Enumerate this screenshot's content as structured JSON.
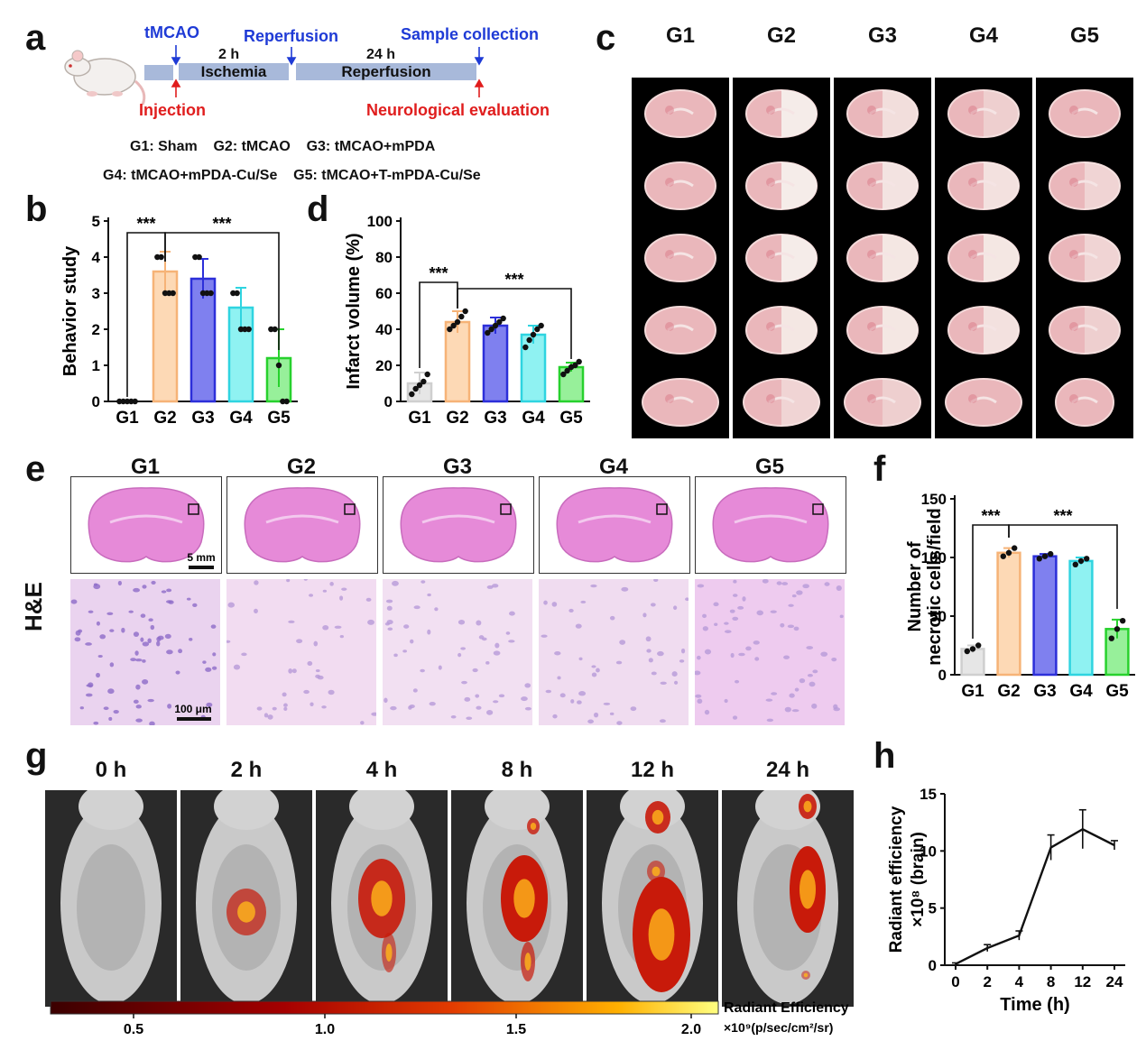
{
  "panel_labels": {
    "a": "a",
    "b": "b",
    "c": "c",
    "d": "d",
    "e": "e",
    "f": "f",
    "g": "g",
    "h": "h"
  },
  "timeline": {
    "events_top": [
      "tMCAO",
      "Reperfusion",
      "Sample collection"
    ],
    "durations": [
      "2 h",
      "24 h"
    ],
    "phases": [
      "Ischemia",
      "Reperfusion"
    ],
    "events_bottom": [
      "Injection",
      "Neurological evaluation"
    ],
    "groups_line1": "G1: Sham    G2: tMCAO    G3: tMCAO+mPDA",
    "groups_line2": "G4: tMCAO+mPDA-Cu/Se    G5: tMCAO+T-mPDA-Cu/Se"
  },
  "groups": [
    "G1",
    "G2",
    "G3",
    "G4",
    "G5"
  ],
  "colors": {
    "G1": "#e6e6e6",
    "G2": "#fdd9b5",
    "G3": "#7f80ef",
    "G4": "#8ff2f2",
    "G5": "#97f09a",
    "G1_edge": "#cfcfcf",
    "G2_edge": "#f6b377",
    "G3_edge": "#2c2fd9",
    "G4_edge": "#2fd4e0",
    "G5_edge": "#27d12d",
    "blue": "#1f3bd6",
    "red": "#e01d1d"
  },
  "he": {
    "row_label": "H&E",
    "scale_top": "5 mm",
    "scale_bottom": "100 μm"
  },
  "imaging": {
    "times": [
      "0 h",
      "2 h",
      "4 h",
      "8 h",
      "12 h",
      "24 h"
    ],
    "colorbar_title": "Radiant Efficiency",
    "colorbar_unit": "×10⁹(p/sec/cm²/sr)",
    "colorbar_ticks": [
      "0.5",
      "1.0",
      "1.5",
      "2.0"
    ]
  },
  "chart_data": [
    {
      "panel": "b",
      "type": "bar",
      "categories": [
        "G1",
        "G2",
        "G3",
        "G4",
        "G5"
      ],
      "values": [
        0,
        3.6,
        3.4,
        2.6,
        1.2
      ],
      "errors": [
        0,
        0.55,
        0.55,
        0.55,
        0.8
      ],
      "points": [
        [
          0,
          0,
          0,
          0,
          0
        ],
        [
          4,
          4,
          3,
          3,
          3
        ],
        [
          4,
          4,
          3,
          3,
          3
        ],
        [
          3,
          3,
          2,
          2,
          2
        ],
        [
          2,
          2,
          1,
          0,
          0
        ]
      ],
      "ylabel": "Behavior study",
      "ylim": [
        0,
        5
      ],
      "yticks": [
        0,
        1,
        2,
        3,
        4,
        5
      ],
      "sig": [
        {
          "from": "G1",
          "to": "G2",
          "label": "***"
        },
        {
          "from": "G2",
          "to": "G5",
          "label": "***"
        }
      ]
    },
    {
      "panel": "d",
      "type": "bar",
      "categories": [
        "G1",
        "G2",
        "G3",
        "G4",
        "G5"
      ],
      "values": [
        10,
        44,
        42,
        37,
        19
      ],
      "errors": [
        6,
        6,
        4.5,
        5,
        2.5
      ],
      "points": [
        [
          4,
          7,
          9,
          11,
          15
        ],
        [
          40,
          42,
          44,
          47,
          50
        ],
        [
          38,
          40,
          42,
          44,
          46
        ],
        [
          30,
          34,
          37,
          40,
          42
        ],
        [
          15,
          17,
          19,
          20,
          22
        ]
      ],
      "ylabel": "Infarct volume (%)",
      "ylim": [
        0,
        100
      ],
      "yticks": [
        0,
        20,
        40,
        60,
        80,
        100
      ],
      "sig": [
        {
          "from": "G1",
          "to": "G2",
          "label": "***"
        },
        {
          "from": "G2",
          "to": "G5",
          "label": "***"
        }
      ]
    },
    {
      "panel": "f",
      "type": "bar",
      "categories": [
        "G1",
        "G2",
        "G3",
        "G4",
        "G5"
      ],
      "values": [
        22,
        104,
        101,
        97,
        39
      ],
      "errors": [
        3,
        4,
        2,
        3,
        8
      ],
      "points": [
        [
          20,
          22,
          25
        ],
        [
          101,
          104,
          108
        ],
        [
          99,
          101,
          103
        ],
        [
          94,
          97,
          99
        ],
        [
          31,
          39,
          46
        ]
      ],
      "ylabel": "Number of necrotic cells/field",
      "ylim": [
        0,
        150
      ],
      "yticks": [
        0,
        50,
        100,
        150
      ],
      "sig": [
        {
          "from": "G1",
          "to": "G2",
          "label": "***"
        },
        {
          "from": "G2",
          "to": "G5",
          "label": "***"
        }
      ]
    },
    {
      "panel": "h",
      "type": "line",
      "x": [
        "0",
        "2",
        "4",
        "8",
        "12",
        "24"
      ],
      "y": [
        0.1,
        1.5,
        2.6,
        10.3,
        11.9,
        10.5
      ],
      "errors": [
        0.1,
        0.3,
        0.4,
        1.1,
        1.7,
        0.4
      ],
      "xlabel": "Time (h)",
      "ylabel": "Radiant efficiency ×10⁸ (brain)",
      "ylim": [
        0,
        15
      ],
      "yticks": [
        0,
        5,
        10,
        15
      ]
    }
  ]
}
